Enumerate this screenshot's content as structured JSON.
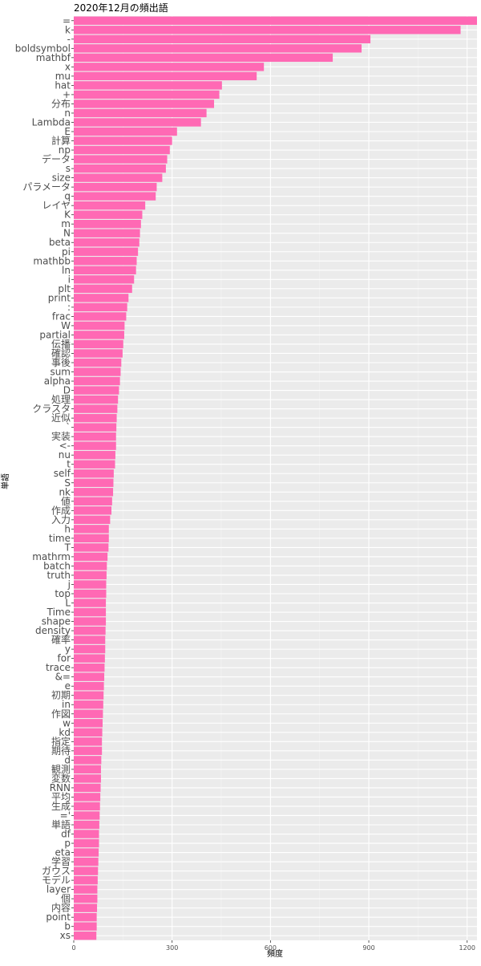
{
  "chart_data": {
    "type": "bar",
    "orientation": "horizontal",
    "title": "2020年12月の頻出語",
    "xlabel": "頻度",
    "ylabel": "単語",
    "xlim": [
      0,
      1230
    ],
    "xticks": [
      0,
      300,
      600,
      900,
      1200
    ],
    "grid": true,
    "bar_color": "#ff69b4",
    "panel_color": "#ebebeb",
    "categories": [
      "=",
      "k",
      "-",
      "boldsymbol",
      "mathbf",
      "x",
      "mu",
      "hat",
      "+",
      "分布",
      "n",
      "Lambda",
      "E",
      "計算",
      "np",
      "データ",
      "s",
      "size",
      "パラメータ",
      "q",
      "レイヤ",
      "K",
      "m",
      "N",
      "beta",
      "pi",
      "mathbb",
      "ln",
      "i",
      "plt",
      "print",
      ":",
      "frac",
      "W",
      "partial",
      "伝播",
      "確認",
      "事後",
      "sum",
      "alpha",
      "D",
      "処理",
      "クラスタ",
      "近似",
      "`",
      "実装",
      "<-",
      "nu",
      "t",
      "self",
      "S",
      "nk",
      "値",
      "作成",
      "入力",
      "h",
      "time",
      "T",
      "mathrm",
      "batch",
      "truth",
      "j",
      "top",
      "L",
      "Time",
      "shape",
      "density",
      "確率",
      "y",
      "for",
      "trace",
      "&=",
      "e",
      "初期",
      "in",
      "作図",
      "w",
      "kd",
      "指定",
      "期待",
      "d",
      "観測",
      "変数",
      "RNN",
      "平均",
      "生成",
      "='",
      "単語",
      "df",
      "p",
      "eta",
      "学習",
      "ガウス",
      "モデル",
      "layer",
      "個",
      "内容",
      "point",
      "b",
      "xs"
    ],
    "values": [
      1230,
      1180,
      905,
      878,
      790,
      580,
      558,
      452,
      444,
      428,
      405,
      388,
      315,
      300,
      293,
      285,
      281,
      270,
      253,
      250,
      218,
      209,
      205,
      202,
      200,
      196,
      192,
      190,
      184,
      178,
      167,
      163,
      160,
      155,
      154,
      151,
      149,
      145,
      143,
      141,
      138,
      135,
      133,
      131,
      130,
      129,
      129,
      127,
      126,
      122,
      121,
      120,
      117,
      115,
      111,
      107,
      107,
      106,
      103,
      101,
      100,
      99,
      99,
      98,
      98,
      98,
      97,
      96,
      96,
      95,
      94,
      93,
      92,
      91,
      90,
      89,
      88,
      87,
      86,
      86,
      84,
      83,
      83,
      82,
      81,
      80,
      79,
      78,
      77,
      77,
      76,
      75,
      74,
      73,
      72,
      72,
      71,
      70,
      70,
      69
    ]
  }
}
